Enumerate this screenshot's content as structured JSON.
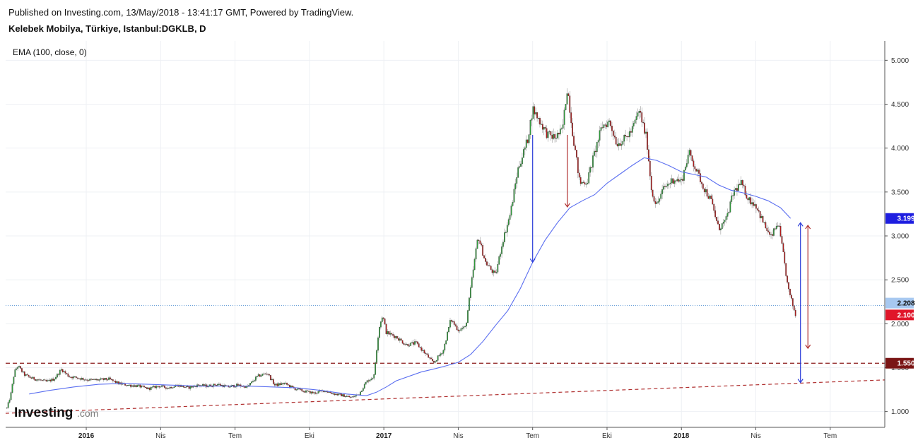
{
  "header": {
    "publish_line": "Published on Investing.com, 13/May/2018 - 13:41:17 GMT, Powered by TradingView.",
    "symbol_line": "Kelebek Mobilya, Türkiye, Istanbul:DGKLB, D"
  },
  "indicator_label": "EMA (100, close, 0)",
  "logo": {
    "word": "Investing",
    "suffix": ".com"
  },
  "colors": {
    "up_candle": "#2e9b3a",
    "down_candle": "#b11a1a",
    "ema_line": "#5a6ef0",
    "support_line": "#8b1a1a",
    "trend_line": "#b03030",
    "blue_arrow": "#2a3bd9",
    "red_arrow": "#b03030",
    "grid": "#eef0f4",
    "current_price_line": "#6aa0d8"
  },
  "chart_data": {
    "type": "candlestick",
    "title": "Kelebek Mobilya, Türkiye, Istanbul:DGKLB, D",
    "ylim": [
      0.82,
      5.22
    ],
    "y_ticks": [
      "1.000",
      "1.500",
      "2.000",
      "2.500",
      "3.000",
      "3.500",
      "4.000",
      "4.500",
      "5.000"
    ],
    "x_labels": [
      {
        "label": "2016",
        "t": 3.5,
        "bold": true
      },
      {
        "label": "Nis",
        "t": 6.5,
        "bold": false
      },
      {
        "label": "Tem",
        "t": 9.5,
        "bold": false
      },
      {
        "label": "Eki",
        "t": 12.5,
        "bold": false
      },
      {
        "label": "2017",
        "t": 15.5,
        "bold": true
      },
      {
        "label": "Nis",
        "t": 18.5,
        "bold": false
      },
      {
        "label": "Tem",
        "t": 21.5,
        "bold": false
      },
      {
        "label": "Eki",
        "t": 24.5,
        "bold": false
      },
      {
        "label": "2018",
        "t": 27.5,
        "bold": true
      },
      {
        "label": "Nis",
        "t": 30.5,
        "bold": false
      },
      {
        "label": "Tem",
        "t": 33.5,
        "bold": false
      }
    ],
    "xlim": [
      0.25,
      35.7
    ],
    "close_path": [
      [
        0.3,
        1.04
      ],
      [
        0.45,
        1.18
      ],
      [
        0.6,
        1.45
      ],
      [
        0.75,
        1.52
      ],
      [
        1.0,
        1.42
      ],
      [
        1.3,
        1.38
      ],
      [
        1.6,
        1.36
      ],
      [
        1.9,
        1.34
      ],
      [
        2.2,
        1.37
      ],
      [
        2.5,
        1.48
      ],
      [
        2.8,
        1.4
      ],
      [
        3.2,
        1.38
      ],
      [
        3.6,
        1.36
      ],
      [
        4.0,
        1.36
      ],
      [
        4.4,
        1.37
      ],
      [
        4.8,
        1.32
      ],
      [
        5.2,
        1.3
      ],
      [
        5.6,
        1.29
      ],
      [
        6.0,
        1.26
      ],
      [
        6.4,
        1.29
      ],
      [
        6.8,
        1.27
      ],
      [
        7.2,
        1.3
      ],
      [
        7.6,
        1.27
      ],
      [
        8.0,
        1.3
      ],
      [
        8.4,
        1.29
      ],
      [
        8.8,
        1.31
      ],
      [
        9.2,
        1.28
      ],
      [
        9.6,
        1.3
      ],
      [
        10.0,
        1.28
      ],
      [
        10.4,
        1.4
      ],
      [
        10.8,
        1.44
      ],
      [
        11.1,
        1.3
      ],
      [
        11.5,
        1.32
      ],
      [
        11.9,
        1.26
      ],
      [
        12.3,
        1.23
      ],
      [
        12.7,
        1.21
      ],
      [
        13.1,
        1.24
      ],
      [
        13.5,
        1.2
      ],
      [
        13.9,
        1.18
      ],
      [
        14.2,
        1.16
      ],
      [
        14.5,
        1.2
      ],
      [
        14.8,
        1.34
      ],
      [
        15.1,
        1.4
      ],
      [
        15.3,
        1.95
      ],
      [
        15.45,
        2.1
      ],
      [
        15.6,
        1.9
      ],
      [
        16.0,
        1.85
      ],
      [
        16.4,
        1.76
      ],
      [
        16.8,
        1.78
      ],
      [
        17.2,
        1.65
      ],
      [
        17.5,
        1.55
      ],
      [
        17.9,
        1.7
      ],
      [
        18.2,
        2.05
      ],
      [
        18.5,
        1.93
      ],
      [
        18.8,
        1.96
      ],
      [
        19.0,
        2.4
      ],
      [
        19.3,
        3.0
      ],
      [
        19.6,
        2.7
      ],
      [
        20.0,
        2.55
      ],
      [
        20.3,
        2.95
      ],
      [
        20.6,
        3.25
      ],
      [
        20.9,
        3.75
      ],
      [
        21.3,
        4.1
      ],
      [
        21.5,
        4.45
      ],
      [
        21.8,
        4.3
      ],
      [
        22.1,
        4.15
      ],
      [
        22.4,
        4.12
      ],
      [
        22.7,
        4.2
      ],
      [
        22.9,
        4.7
      ],
      [
        23.1,
        4.2
      ],
      [
        23.4,
        3.6
      ],
      [
        23.7,
        3.62
      ],
      [
        24.0,
        3.95
      ],
      [
        24.3,
        4.25
      ],
      [
        24.6,
        4.3
      ],
      [
        24.9,
        4.05
      ],
      [
        25.2,
        4.1
      ],
      [
        25.5,
        4.2
      ],
      [
        25.8,
        4.43
      ],
      [
        26.1,
        4.1
      ],
      [
        26.3,
        3.5
      ],
      [
        26.5,
        3.35
      ],
      [
        26.8,
        3.55
      ],
      [
        27.2,
        3.65
      ],
      [
        27.5,
        3.62
      ],
      [
        27.8,
        3.95
      ],
      [
        28.1,
        3.75
      ],
      [
        28.4,
        3.55
      ],
      [
        28.7,
        3.4
      ],
      [
        29.0,
        3.08
      ],
      [
        29.3,
        3.18
      ],
      [
        29.6,
        3.5
      ],
      [
        29.9,
        3.6
      ],
      [
        30.2,
        3.42
      ],
      [
        30.5,
        3.35
      ],
      [
        30.8,
        3.15
      ],
      [
        31.1,
        2.98
      ],
      [
        31.4,
        3.15
      ],
      [
        31.6,
        2.8
      ],
      [
        31.8,
        2.4
      ],
      [
        32.0,
        2.2
      ],
      [
        32.1,
        2.1
      ]
    ],
    "ema_path": [
      [
        1.2,
        1.2
      ],
      [
        2.0,
        1.24
      ],
      [
        3.0,
        1.28
      ],
      [
        4.0,
        1.31
      ],
      [
        5.0,
        1.32
      ],
      [
        6.0,
        1.31
      ],
      [
        7.0,
        1.3
      ],
      [
        8.0,
        1.29
      ],
      [
        9.0,
        1.29
      ],
      [
        10.0,
        1.29
      ],
      [
        11.0,
        1.28
      ],
      [
        12.0,
        1.27
      ],
      [
        13.0,
        1.24
      ],
      [
        14.0,
        1.2
      ],
      [
        14.8,
        1.18
      ],
      [
        15.2,
        1.22
      ],
      [
        15.6,
        1.28
      ],
      [
        16.0,
        1.35
      ],
      [
        17.0,
        1.45
      ],
      [
        17.6,
        1.49
      ],
      [
        18.0,
        1.52
      ],
      [
        18.5,
        1.56
      ],
      [
        19.0,
        1.65
      ],
      [
        19.5,
        1.8
      ],
      [
        20.0,
        1.98
      ],
      [
        20.5,
        2.15
      ],
      [
        21.0,
        2.4
      ],
      [
        21.5,
        2.7
      ],
      [
        22.0,
        2.95
      ],
      [
        22.5,
        3.15
      ],
      [
        23.0,
        3.32
      ],
      [
        23.5,
        3.4
      ],
      [
        24.0,
        3.47
      ],
      [
        24.5,
        3.6
      ],
      [
        25.0,
        3.7
      ],
      [
        25.5,
        3.8
      ],
      [
        26.0,
        3.89
      ],
      [
        26.5,
        3.86
      ],
      [
        27.0,
        3.8
      ],
      [
        27.5,
        3.73
      ],
      [
        28.0,
        3.7
      ],
      [
        28.5,
        3.67
      ],
      [
        29.0,
        3.58
      ],
      [
        29.5,
        3.52
      ],
      [
        30.0,
        3.49
      ],
      [
        30.5,
        3.45
      ],
      [
        31.0,
        3.4
      ],
      [
        31.5,
        3.32
      ],
      [
        31.9,
        3.2
      ]
    ],
    "support_level": 1.55,
    "trend_line": {
      "from": [
        0.25,
        0.98
      ],
      "to": [
        35.7,
        1.36
      ]
    },
    "current_price_line": 2.208,
    "arrows": [
      {
        "color": "blue",
        "from": [
          21.5,
          4.15
        ],
        "to": [
          21.5,
          2.7
        ]
      },
      {
        "color": "red",
        "from": [
          22.9,
          4.15
        ],
        "to": [
          22.9,
          3.33
        ]
      },
      {
        "color": "blue",
        "from": [
          32.3,
          3.15
        ],
        "to": [
          32.3,
          1.33
        ],
        "double": true
      },
      {
        "color": "red",
        "from": [
          32.6,
          3.12
        ],
        "to": [
          32.6,
          1.72
        ],
        "double": true
      }
    ],
    "price_badges": [
      {
        "label": "3.199",
        "value": 3.199,
        "bg": "#1e1ee0",
        "fg": "#ffffff"
      },
      {
        "label": "2.208",
        "value": 2.235,
        "bg": "#a7c8f0",
        "fg": "#111111"
      },
      {
        "label": "2.100",
        "value": 2.1,
        "bg": "#e0162a",
        "fg": "#ffffff"
      },
      {
        "label": "1.550",
        "value": 1.55,
        "bg": "#7a1515",
        "fg": "#ffffff"
      }
    ]
  }
}
